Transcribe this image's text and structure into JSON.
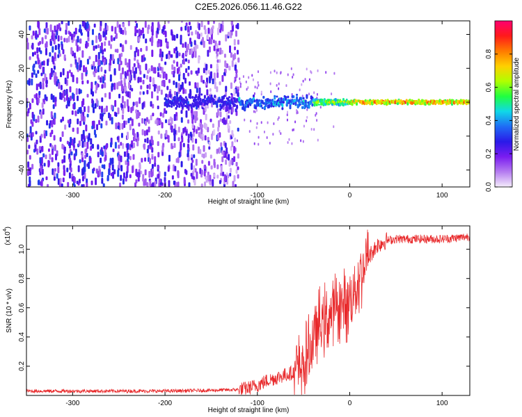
{
  "figure_title": "C2E5.2026.056.11.46.G22",
  "chart_data": [
    {
      "type": "heatmap",
      "title": "C2E5.2026.056.11.46.G22",
      "xlabel": "Height of straight line (km)",
      "ylabel": "Frequency (Hz)",
      "xlim": [
        -350,
        130
      ],
      "ylim": [
        -50,
        48
      ],
      "x_ticks": [
        -300,
        -200,
        -100,
        0,
        100
      ],
      "x_tick_labels": [
        "-300",
        "-200",
        "-100",
        "0",
        "100"
      ],
      "y_ticks": [
        -40,
        -20,
        0,
        20,
        40
      ],
      "y_tick_labels": [
        "-40",
        "-20",
        "0",
        "20",
        "40"
      ],
      "colorbar": {
        "label": "Normalized spectral amplitude",
        "range": [
          0,
          1
        ],
        "ticks": [
          0.0,
          0.2,
          0.4,
          0.6,
          0.8
        ],
        "tick_labels": [
          "0.0",
          "0.2",
          "0.4",
          "0.6",
          "0.8"
        ],
        "colors": [
          "#f4ecfb",
          "#b57cf0",
          "#7a1cf0",
          "#2a1ae8",
          "#1f6cf5",
          "#10d8e8",
          "#20ff40",
          "#b0ff00",
          "#ffd000",
          "#ff7a00",
          "#ff1a1a",
          "#ff0070"
        ]
      },
      "features": [
        {
          "name": "broadband noise",
          "x_range": [
            -350,
            -120
          ],
          "freq_range": [
            -50,
            48
          ],
          "amplitude": "0.1-0.3"
        },
        {
          "name": "signal trace",
          "x_range": [
            -200,
            130
          ],
          "freq_center": 0,
          "amplitude": "0.3-1.0"
        }
      ]
    },
    {
      "type": "line",
      "title": "",
      "xlabel": "Height of straight line (km)",
      "ylabel": "SNR (10 * v/v)",
      "y_scale_note": "(x10",
      "y_scale_exponent": "4",
      "xlim": [
        -350,
        130
      ],
      "ylim": [
        0,
        1.16
      ],
      "x_ticks": [
        -300,
        -200,
        -100,
        0,
        100
      ],
      "x_tick_labels": [
        "-300",
        "-200",
        "-100",
        "0",
        "100"
      ],
      "y_ticks": [
        0.2,
        0.4,
        0.6,
        0.8,
        1.0
      ],
      "y_tick_labels": [
        "0.2",
        "0.4",
        "0.6",
        "0.8",
        "1.0"
      ],
      "color": "#e8282a",
      "series": [
        {
          "name": "SNR",
          "x": [
            -350,
            -300,
            -250,
            -200,
            -150,
            -120,
            -110,
            -100,
            -90,
            -80,
            -70,
            -60,
            -50,
            -45,
            -40,
            -35,
            -30,
            -25,
            -20,
            -15,
            -10,
            -5,
            0,
            5,
            10,
            15,
            20,
            25,
            30,
            40,
            50,
            60,
            80,
            100,
            120,
            130
          ],
          "y": [
            0.03,
            0.03,
            0.03,
            0.03,
            0.035,
            0.04,
            0.05,
            0.07,
            0.1,
            0.12,
            0.14,
            0.16,
            0.2,
            0.28,
            0.38,
            0.45,
            0.5,
            0.52,
            0.55,
            0.6,
            0.62,
            0.6,
            0.66,
            0.72,
            0.8,
            0.88,
            0.94,
            0.99,
            1.03,
            1.06,
            1.07,
            1.07,
            1.07,
            1.07,
            1.08,
            1.09
          ]
        }
      ]
    }
  ]
}
